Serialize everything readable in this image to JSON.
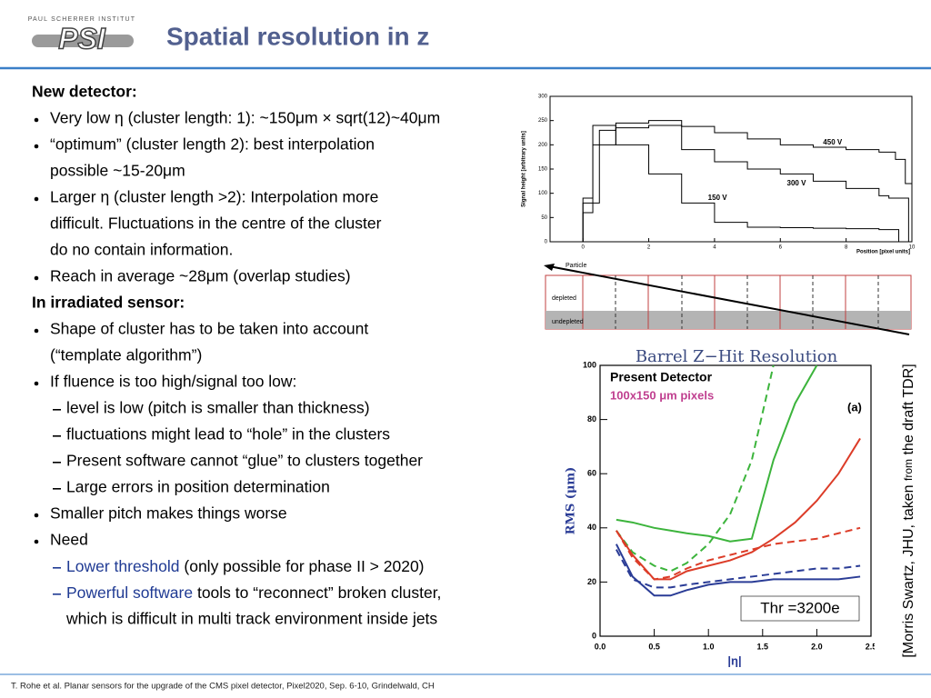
{
  "header": {
    "institute": "PAUL SCHERRER INSTITUT",
    "logo": "PSI",
    "title": "Spatial resolution in z"
  },
  "body": [
    {
      "kind": "heading",
      "text": "New detector:"
    },
    {
      "kind": "bullet",
      "text": "Very low η (cluster length: 1): ~150μm × sqrt(12)~40μm"
    },
    {
      "kind": "bullet",
      "text": "“optimum” (cluster length 2): best interpolation"
    },
    {
      "kind": "cont",
      "text": "possible ~15-20μm"
    },
    {
      "kind": "bullet",
      "text": "Larger η (cluster length >2): Interpolation more"
    },
    {
      "kind": "cont",
      "text": "difficult. Fluctuations in the centre of the cluster"
    },
    {
      "kind": "cont",
      "text": "do no contain information."
    },
    {
      "kind": "bullet",
      "text": "Reach in average ~28μm (overlap studies)"
    },
    {
      "kind": "heading",
      "text": "In irradiated sensor:"
    },
    {
      "kind": "bullet",
      "text": "Shape of cluster has to be taken into account"
    },
    {
      "kind": "cont",
      "text": "(“template algorithm”)"
    },
    {
      "kind": "bullet",
      "text": "If fluence is too high/signal too low:"
    },
    {
      "kind": "dash",
      "text": "level is low (pitch is smaller than thickness)"
    },
    {
      "kind": "dash",
      "text": "fluctuations might lead to “hole” in the clusters"
    },
    {
      "kind": "dash",
      "text": "Present software cannot “glue” to clusters together"
    },
    {
      "kind": "dash",
      "text": "Large errors in position determination"
    },
    {
      "kind": "bullet",
      "text": "Smaller pitch makes things worse"
    },
    {
      "kind": "bullet",
      "text": "Need"
    },
    {
      "kind": "dash",
      "parts": [
        {
          "text": "Lower threshold",
          "highlight": true
        },
        {
          "text": " (only possible for phase II > 2020)"
        }
      ]
    },
    {
      "kind": "dash",
      "parts": [
        {
          "text": "Powerful software",
          "highlight": true
        },
        {
          "text": " tools to “reconnect” broken cluster,"
        }
      ]
    },
    {
      "kind": "cont2",
      "text": "which is difficult in multi track environment inside jets"
    }
  ],
  "chart_data": [
    {
      "type": "line",
      "ylabel": "Signal height [arbitrary units]",
      "xlabel": "Position [pixel units]",
      "xlim": [
        -1,
        10
      ],
      "ylim": [
        0,
        300
      ],
      "xticks": [
        0,
        2,
        4,
        6,
        8,
        10
      ],
      "yticks": [
        0,
        50,
        100,
        150,
        200,
        250,
        300
      ],
      "color": "#000000",
      "series": [
        {
          "name": "450 V",
          "x": [
            -0.5,
            0,
            0.3,
            1,
            2,
            3,
            4,
            5,
            6,
            7,
            8,
            9,
            9.5,
            9.8,
            10
          ],
          "values": [
            0,
            60,
            200,
            235,
            240,
            238,
            225,
            212,
            200,
            195,
            190,
            185,
            170,
            120,
            0
          ]
        },
        {
          "name": "300 V",
          "x": [
            -0.4,
            0,
            0.5,
            1,
            2,
            3,
            4,
            5,
            6,
            7,
            8,
            9,
            9.3,
            9.9
          ],
          "values": [
            0,
            80,
            230,
            245,
            250,
            190,
            165,
            150,
            140,
            125,
            110,
            95,
            90,
            0
          ]
        },
        {
          "name": "150 V",
          "x": [
            -0.3,
            0,
            0.3,
            1,
            2,
            3,
            4,
            5,
            6,
            7,
            8,
            9,
            9.6
          ],
          "values": [
            0,
            90,
            240,
            200,
            140,
            80,
            40,
            30,
            29,
            28,
            27,
            25,
            0
          ]
        }
      ]
    },
    {
      "type": "line",
      "title": "Barrel Z−Hit Resolution",
      "ylabel": "RMS (μm)",
      "xlabel": "|η|",
      "annotations": [
        "Present Detector",
        "100x150 μm pixels",
        "(a)",
        "Thr =3200e"
      ],
      "x": [
        0.15,
        0.3,
        0.5,
        0.65,
        0.8,
        1.0,
        1.2,
        1.4,
        1.6,
        1.8,
        2.0,
        2.2,
        2.4
      ],
      "xlim": [
        0,
        2.5
      ],
      "ylim": [
        0,
        100
      ],
      "xticks": [
        {
          "value": 0,
          "label": "0.0"
        },
        {
          "value": 0.5,
          "label": "0.5"
        },
        {
          "value": 1,
          "label": "1.0"
        },
        {
          "value": 1.5,
          "label": "1.5"
        },
        {
          "value": 2,
          "label": "2.0"
        },
        {
          "value": 2.5,
          "label": "2.5"
        }
      ],
      "yticks": [
        0,
        20,
        40,
        60,
        80,
        100
      ],
      "series": [
        {
          "color": "#3cb43c",
          "dash": false,
          "values": [
            43,
            42,
            40,
            39,
            38,
            37,
            35,
            36,
            65,
            86,
            100,
            null,
            null
          ]
        },
        {
          "color": "#3cb43c",
          "dash": true,
          "values": [
            39,
            31,
            26,
            24,
            27,
            34,
            45,
            65,
            100,
            null,
            null,
            null,
            null
          ]
        },
        {
          "color": "#dc3c28",
          "dash": false,
          "values": [
            39,
            30,
            21,
            21,
            24,
            26,
            28,
            31,
            36,
            42,
            50,
            60,
            73
          ]
        },
        {
          "color": "#dc3c28",
          "dash": true,
          "values": [
            39,
            29,
            21,
            22,
            25,
            28,
            30,
            32,
            34,
            35,
            36,
            38,
            40
          ]
        },
        {
          "color": "#2a3c96",
          "dash": false,
          "values": [
            34,
            22,
            15,
            15,
            17,
            19,
            20,
            20,
            21,
            21,
            21,
            21,
            22
          ]
        },
        {
          "color": "#2a3c96",
          "dash": true,
          "values": [
            32,
            21,
            18,
            18,
            19,
            20,
            21,
            22,
            23,
            24,
            25,
            25,
            26
          ]
        }
      ]
    }
  ],
  "diagram": {
    "particle": "Particle",
    "depleted": "depleted",
    "undepleted": "undepleted"
  },
  "citation": [
    {
      "text": "[Morris Swartz, JHU, taken "
    },
    {
      "text": "from",
      "small": true
    },
    {
      "text": " the draft TDR]"
    }
  ],
  "footer": "T. Rohe et al. Planar sensors for the upgrade of the CMS pixel detector, Pixel2020, Sep. 6-10, Grindelwald, CH"
}
